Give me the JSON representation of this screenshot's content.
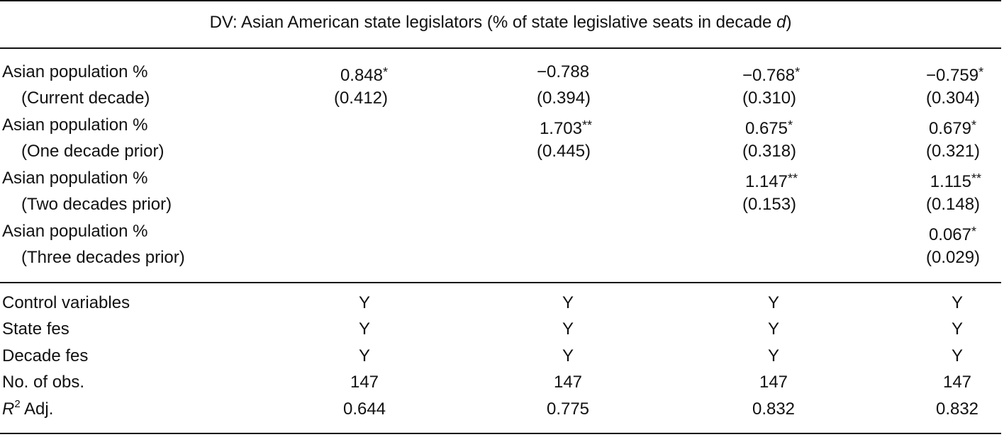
{
  "header": {
    "title_prefix": "DV: Asian American state legislators (% of state legislative seats in decade ",
    "title_var": "d",
    "title_suffix": ")"
  },
  "rows": [
    {
      "label": "Asian population %",
      "cells": [
        {
          "num": "0.848",
          "stars": "*"
        },
        {
          "num": "−0.788",
          "stars": ""
        },
        {
          "num": "−0.768",
          "stars": "*"
        },
        {
          "num": "−0.759",
          "stars": "*"
        }
      ]
    },
    {
      "label": "(Current decade)",
      "cells": [
        {
          "num": "(0.412)",
          "stars": ""
        },
        {
          "num": "(0.394)",
          "stars": ""
        },
        {
          "num": "(0.310)",
          "stars": ""
        },
        {
          "num": "(0.304)",
          "stars": ""
        }
      ]
    },
    {
      "label": "Asian population %",
      "cells": [
        {
          "num": "",
          "stars": ""
        },
        {
          "num": "1.703",
          "stars": "**"
        },
        {
          "num": "0.675",
          "stars": "*"
        },
        {
          "num": "0.679",
          "stars": "*"
        }
      ]
    },
    {
      "label": "(One decade prior)",
      "cells": [
        {
          "num": "",
          "stars": ""
        },
        {
          "num": "(0.445)",
          "stars": ""
        },
        {
          "num": "(0.318)",
          "stars": ""
        },
        {
          "num": "(0.321)",
          "stars": ""
        }
      ]
    },
    {
      "label": "Asian population %",
      "cells": [
        {
          "num": "",
          "stars": ""
        },
        {
          "num": "",
          "stars": ""
        },
        {
          "num": "1.147",
          "stars": "**"
        },
        {
          "num": "1.115",
          "stars": "**"
        }
      ]
    },
    {
      "label": "(Two decades prior)",
      "cells": [
        {
          "num": "",
          "stars": ""
        },
        {
          "num": "",
          "stars": ""
        },
        {
          "num": "(0.153)",
          "stars": ""
        },
        {
          "num": "(0.148)",
          "stars": ""
        }
      ]
    },
    {
      "label": "Asian population %",
      "cells": [
        {
          "num": "",
          "stars": ""
        },
        {
          "num": "",
          "stars": ""
        },
        {
          "num": "",
          "stars": ""
        },
        {
          "num": "0.067",
          "stars": "*"
        }
      ]
    },
    {
      "label": "(Three decades prior)",
      "cells": [
        {
          "num": "",
          "stars": ""
        },
        {
          "num": "",
          "stars": ""
        },
        {
          "num": "",
          "stars": ""
        },
        {
          "num": "(0.029)",
          "stars": ""
        }
      ]
    }
  ],
  "stats": [
    {
      "label": "Control variables",
      "values": [
        "Y",
        "Y",
        "Y",
        "Y"
      ]
    },
    {
      "label": "State fes",
      "values": [
        "Y",
        "Y",
        "Y",
        "Y"
      ]
    },
    {
      "label": "Decade fes",
      "values": [
        "Y",
        "Y",
        "Y",
        "Y"
      ]
    },
    {
      "label": "No. of obs.",
      "values": [
        "147",
        "147",
        "147",
        "147"
      ]
    }
  ],
  "r2": {
    "var": "R",
    "sup": "2",
    "suffix": " Adj.",
    "values": [
      "0.644",
      "0.775",
      "0.832",
      "0.832"
    ]
  }
}
